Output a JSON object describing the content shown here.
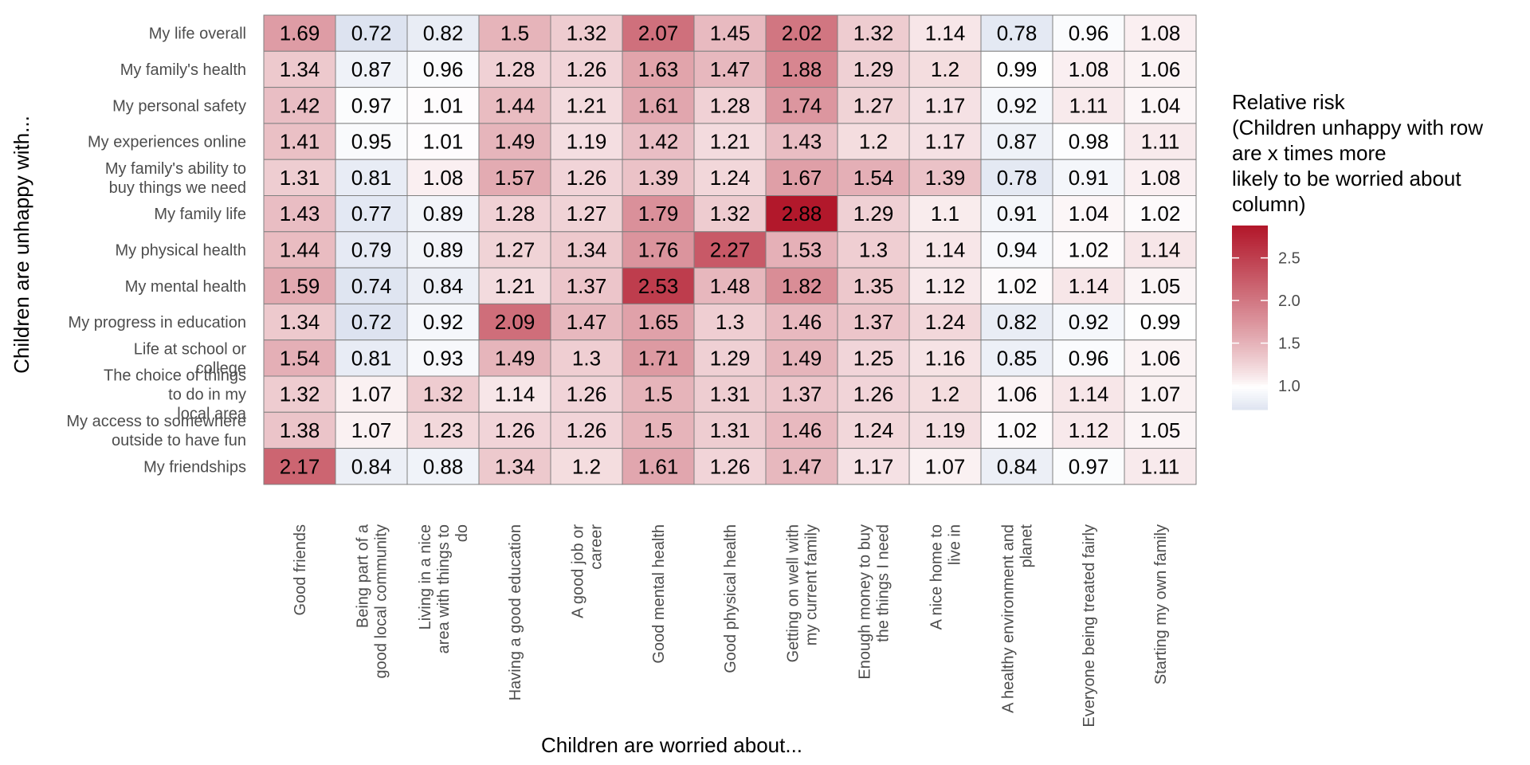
{
  "chart_data": {
    "type": "heatmap",
    "xlabel": "Children are worried about...",
    "ylabel": "Children are unhappy with...",
    "x_categories": [
      "Good friends",
      "Being part of a\ngood local community",
      "Living in a nice\narea with things to\ndo",
      "Having a good education",
      "A good job or\ncareer",
      "Good mental health",
      "Good physical health",
      "Getting on well with\nmy current family",
      "Enough money to buy\nthe things I need",
      "A nice home to\nlive in",
      "A healthy environment and\nplanet",
      "Everyone being treated fairly",
      "Starting my own family"
    ],
    "y_categories": [
      "My life overall",
      "My family's health",
      "My personal safety",
      "My experiences online",
      "My family's ability to\nbuy things we need",
      "My family life",
      "My physical health",
      "My mental health",
      "My progress in education",
      "Life at school or\ncollege",
      "The choice of things\nto do in my\nlocal area",
      "My access to somewhere\noutside to have fun",
      "My friendships"
    ],
    "values": [
      [
        "1.69",
        "0.72",
        "0.82",
        "1.5",
        "1.32",
        "2.07",
        "1.45",
        "2.02",
        "1.32",
        "1.14",
        "0.78",
        "0.96",
        "1.08"
      ],
      [
        "1.34",
        "0.87",
        "0.96",
        "1.28",
        "1.26",
        "1.63",
        "1.47",
        "1.88",
        "1.29",
        "1.2",
        "0.99",
        "1.08",
        "1.06"
      ],
      [
        "1.42",
        "0.97",
        "1.01",
        "1.44",
        "1.21",
        "1.61",
        "1.28",
        "1.74",
        "1.27",
        "1.17",
        "0.92",
        "1.11",
        "1.04"
      ],
      [
        "1.41",
        "0.95",
        "1.01",
        "1.49",
        "1.19",
        "1.42",
        "1.21",
        "1.43",
        "1.2",
        "1.17",
        "0.87",
        "0.98",
        "1.11"
      ],
      [
        "1.31",
        "0.81",
        "1.08",
        "1.57",
        "1.26",
        "1.39",
        "1.24",
        "1.67",
        "1.54",
        "1.39",
        "0.78",
        "0.91",
        "1.08"
      ],
      [
        "1.43",
        "0.77",
        "0.89",
        "1.28",
        "1.27",
        "1.79",
        "1.32",
        "2.88",
        "1.29",
        "1.1",
        "0.91",
        "1.04",
        "1.02"
      ],
      [
        "1.44",
        "0.79",
        "0.89",
        "1.27",
        "1.34",
        "1.76",
        "2.27",
        "1.53",
        "1.3",
        "1.14",
        "0.94",
        "1.02",
        "1.14"
      ],
      [
        "1.59",
        "0.74",
        "0.84",
        "1.21",
        "1.37",
        "2.53",
        "1.48",
        "1.82",
        "1.35",
        "1.12",
        "1.02",
        "1.14",
        "1.05"
      ],
      [
        "1.34",
        "0.72",
        "0.92",
        "2.09",
        "1.47",
        "1.65",
        "1.3",
        "1.46",
        "1.37",
        "1.24",
        "0.82",
        "0.92",
        "0.99"
      ],
      [
        "1.54",
        "0.81",
        "0.93",
        "1.49",
        "1.3",
        "1.71",
        "1.29",
        "1.49",
        "1.25",
        "1.16",
        "0.85",
        "0.96",
        "1.06"
      ],
      [
        "1.32",
        "1.07",
        "1.32",
        "1.14",
        "1.26",
        "1.5",
        "1.31",
        "1.37",
        "1.26",
        "1.2",
        "1.06",
        "1.14",
        "1.07"
      ],
      [
        "1.38",
        "1.07",
        "1.23",
        "1.26",
        "1.26",
        "1.5",
        "1.31",
        "1.46",
        "1.24",
        "1.19",
        "1.02",
        "1.12",
        "1.05"
      ],
      [
        "2.17",
        "0.84",
        "0.88",
        "1.34",
        "1.2",
        "1.61",
        "1.26",
        "1.47",
        "1.17",
        "1.07",
        "0.84",
        "0.97",
        "1.11"
      ]
    ],
    "legend": {
      "title": "Relative risk\n(Children unhappy with row\nare x times more\nlikely to be worried about\ncolumn)",
      "ticks": [
        "1.0",
        "1.5",
        "2.0",
        "2.5"
      ],
      "range": [
        0.72,
        2.88
      ],
      "midpoint": 1.0,
      "placement": "right",
      "low_color": "#dde3f0",
      "mid_color": "#ffffff",
      "high_color": "#b2182b"
    },
    "grid": false
  }
}
